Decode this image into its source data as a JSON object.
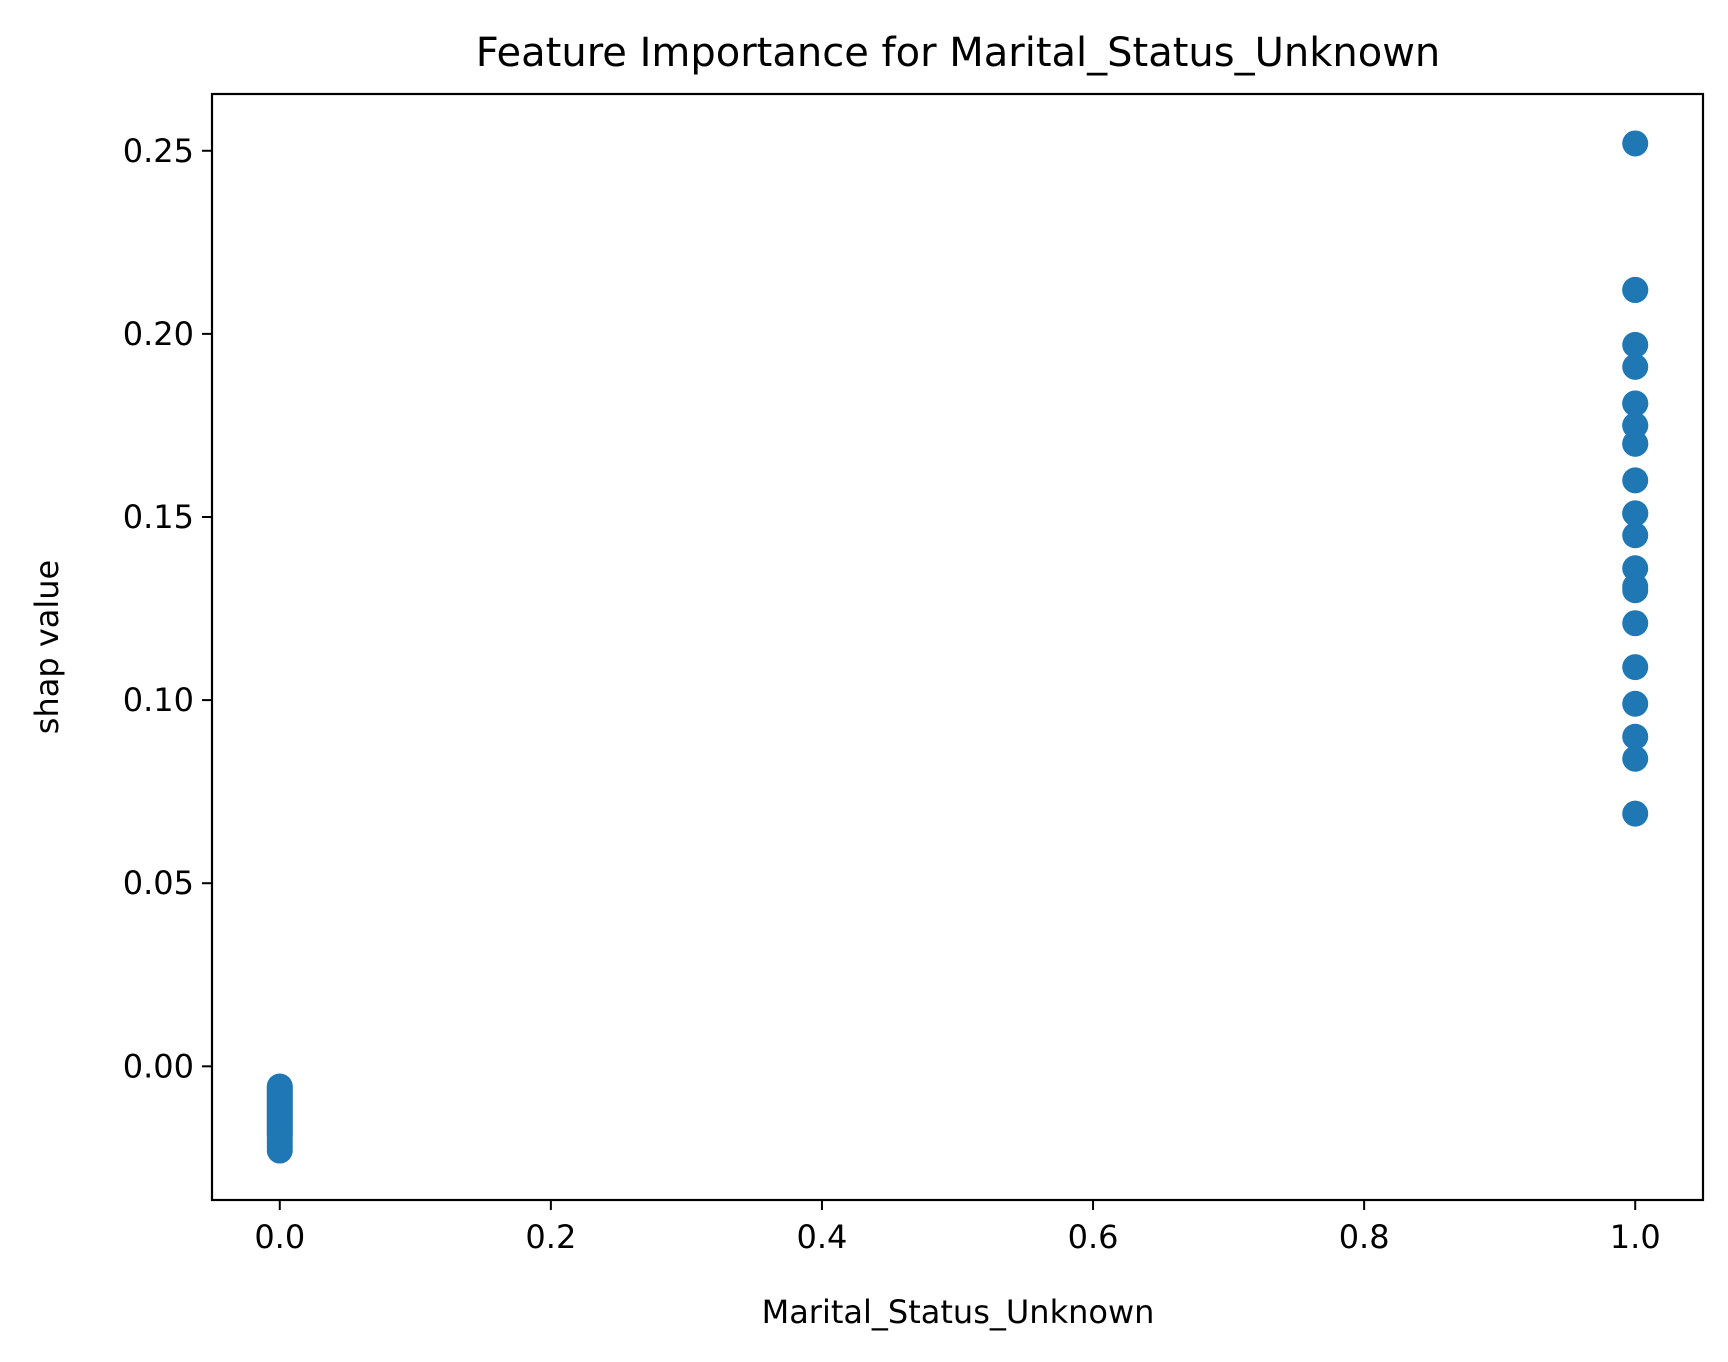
{
  "chart_data": {
    "type": "scatter",
    "title": "Feature Importance for Marital_Status_Unknown",
    "xlabel": "Marital_Status_Unknown",
    "ylabel": "shap value",
    "xlim": [
      -0.05,
      1.05
    ],
    "ylim": [
      -0.0365,
      0.2655
    ],
    "xticks": [
      0.0,
      0.2,
      0.4,
      0.6,
      0.8,
      1.0
    ],
    "xtick_labels": [
      "0.0",
      "0.2",
      "0.4",
      "0.6",
      "0.8",
      "1.0"
    ],
    "yticks": [
      0.0,
      0.05,
      0.1,
      0.15,
      0.2,
      0.25
    ],
    "ytick_labels": [
      "0.00",
      "0.05",
      "0.10",
      "0.15",
      "0.20",
      "0.25"
    ],
    "grid": false,
    "color": "#1f77b4",
    "series": [
      {
        "x": [
          0,
          0,
          0,
          0,
          0,
          0,
          0,
          0,
          0,
          0,
          0,
          0,
          0,
          0,
          0,
          0,
          0,
          0,
          0,
          0,
          0,
          0,
          0,
          0,
          0,
          0,
          0,
          0,
          0,
          0,
          0,
          0,
          1,
          1,
          1,
          1,
          1,
          1,
          1,
          1,
          1,
          1,
          1,
          1,
          1,
          1,
          1,
          1,
          1,
          1,
          1,
          1,
          1,
          1,
          1,
          1
        ],
        "y": [
          -0.0055,
          -0.006,
          -0.0065,
          -0.007,
          -0.0075,
          -0.008,
          -0.0085,
          -0.009,
          -0.0095,
          -0.01,
          -0.0105,
          -0.011,
          -0.0115,
          -0.012,
          -0.0125,
          -0.013,
          -0.0135,
          -0.014,
          -0.0145,
          -0.015,
          -0.0155,
          -0.016,
          -0.0165,
          -0.017,
          -0.0175,
          -0.018,
          -0.0185,
          -0.019,
          -0.02,
          -0.021,
          -0.022,
          -0.023,
          0.252,
          0.212,
          0.212,
          0.197,
          0.191,
          0.181,
          0.181,
          0.175,
          0.175,
          0.17,
          0.17,
          0.16,
          0.151,
          0.151,
          0.145,
          0.136,
          0.131,
          0.13,
          0.121,
          0.109,
          0.099,
          0.09,
          0.084,
          0.069
        ]
      }
    ]
  }
}
